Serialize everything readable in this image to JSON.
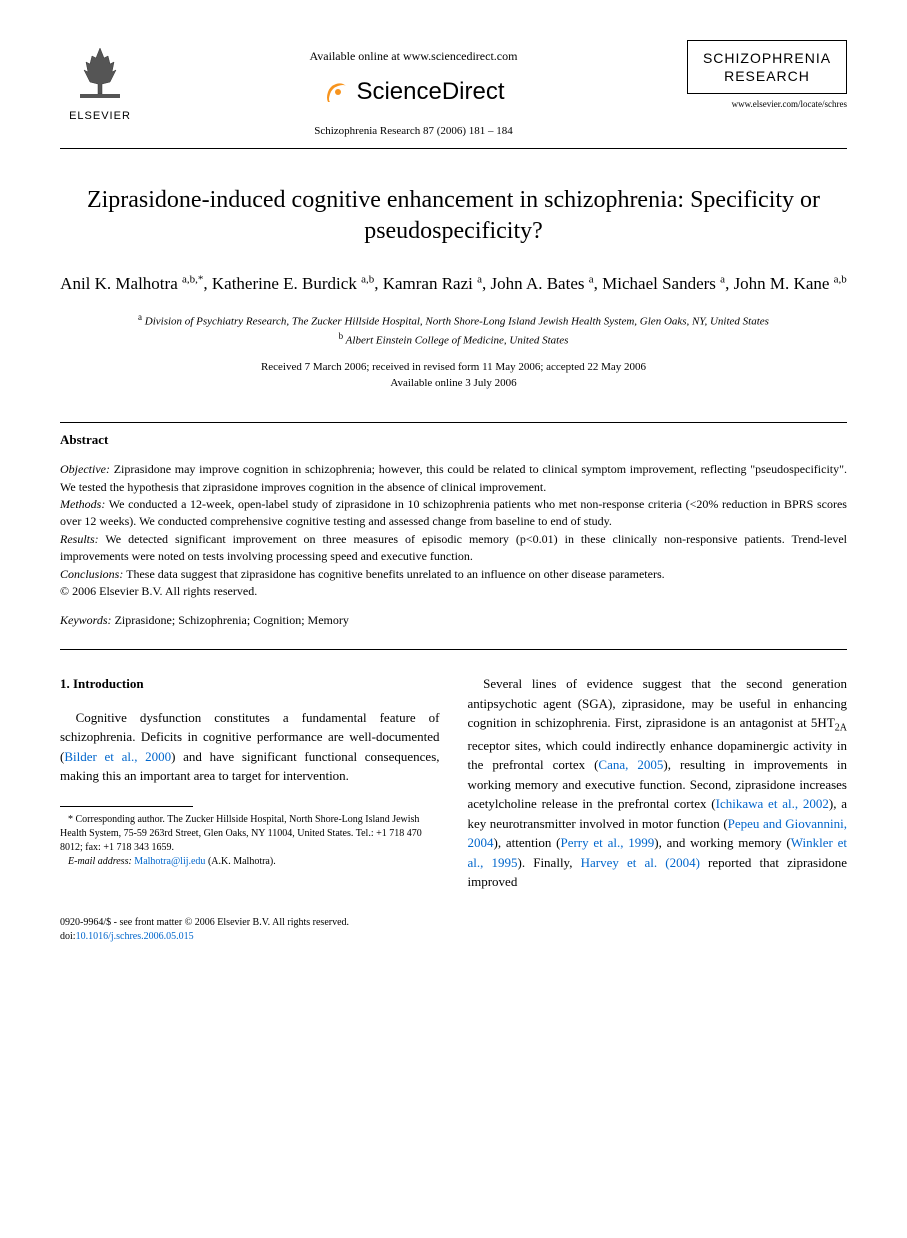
{
  "header": {
    "publisher_name": "ELSEVIER",
    "available_text": "Available online at www.sciencedirect.com",
    "platform_name": "ScienceDirect",
    "citation": "Schizophrenia Research 87 (2006) 181 – 184",
    "journal_box_title_line1": "SCHIZOPHRENIA",
    "journal_box_title_line2": "RESEARCH",
    "journal_url": "www.elsevier.com/locate/schres"
  },
  "article": {
    "title": "Ziprasidone-induced cognitive enhancement in schizophrenia: Specificity or pseudospecificity?",
    "authors_html": "Anil K. Malhotra <sup>a,b,*</sup>, Katherine E. Burdick <sup>a,b</sup>, Kamran Razi <sup>a</sup>, John A. Bates <sup>a</sup>, Michael Sanders <sup>a</sup>, John M. Kane <sup>a,b</sup>",
    "affiliations": {
      "a": "Division of Psychiatry Research, The Zucker Hillside Hospital, North Shore-Long Island Jewish Health System, Glen Oaks, NY, United States",
      "b": "Albert Einstein College of Medicine, United States"
    },
    "dates_line1": "Received 7 March 2006; received in revised form 11 May 2006; accepted 22 May 2006",
    "dates_line2": "Available online 3 July 2006"
  },
  "abstract": {
    "heading": "Abstract",
    "objective": "Ziprasidone may improve cognition in schizophrenia; however, this could be related to clinical symptom improvement, reflecting \"pseudospecificity\". We tested the hypothesis that ziprasidone improves cognition in the absence of clinical improvement.",
    "methods": "We conducted a 12-week, open-label study of ziprasidone in 10 schizophrenia patients who met non-response criteria (<20% reduction in BPRS scores over 12 weeks). We conducted comprehensive cognitive testing and assessed change from baseline to end of study.",
    "results": "We detected significant improvement on three measures of episodic memory (p<0.01) in these clinically non-responsive patients. Trend-level improvements were noted on tests involving processing speed and executive function.",
    "conclusions": "These data suggest that ziprasidone has cognitive benefits unrelated to an influence on other disease parameters.",
    "copyright": "© 2006 Elsevier B.V. All rights reserved.",
    "keywords_label": "Keywords:",
    "keywords": "Ziprasidone; Schizophrenia; Cognition; Memory"
  },
  "body": {
    "intro_heading": "1. Introduction",
    "col1_para": "Cognitive dysfunction constitutes a fundamental feature of schizophrenia. Deficits in cognitive performance are well-documented (",
    "col1_ref1": "Bilder et al., 2000",
    "col1_para_cont": ") and have significant functional consequences, making this an important area to target for intervention.",
    "col2_p1a": "Several lines of evidence suggest that the second generation antipsychotic agent (SGA), ziprasidone, may be useful in enhancing cognition in schizophrenia. First, ziprasidone is an antagonist at 5HT",
    "col2_p1a_sub": "2A",
    "col2_p1b": " receptor sites, which could indirectly enhance dopaminergic activity in the prefrontal cortex (",
    "col2_ref1": "Cana, 2005",
    "col2_p1c": "), resulting in improvements in working memory and executive function. Second, ziprasidone increases acetylcholine release in the prefrontal cortex (",
    "col2_ref2": "Ichikawa et al., 2002",
    "col2_p1d": "), a key neurotransmitter involved in motor function (",
    "col2_ref3": "Pepeu and Giovannini, 2004",
    "col2_p1e": "), attention (",
    "col2_ref4": "Perry et al., 1999",
    "col2_p1f": "), and working memory (",
    "col2_ref5": "Winkler et al., 1995",
    "col2_p1g": "). Finally, ",
    "col2_ref6": "Harvey et al. (2004)",
    "col2_p1h": " reported that ziprasidone improved"
  },
  "footnote": {
    "corr_label": "* Corresponding author.",
    "corr_text": " The Zucker Hillside Hospital, North Shore-Long Island Jewish Health System, 75-59 263rd Street, Glen Oaks, NY 11004, United States. Tel.: +1 718 470 8012; fax: +1 718 343 1659.",
    "email_label": "E-mail address:",
    "email": "Malhotra@lij.edu",
    "email_attr": " (A.K. Malhotra)."
  },
  "footer": {
    "line1": "0920-9964/$ - see front matter © 2006 Elsevier B.V. All rights reserved.",
    "doi_label": "doi:",
    "doi": "10.1016/j.schres.2006.05.015"
  },
  "colors": {
    "text": "#000000",
    "link": "#0066cc",
    "background": "#ffffff",
    "sd_orange": "#f7941e"
  }
}
